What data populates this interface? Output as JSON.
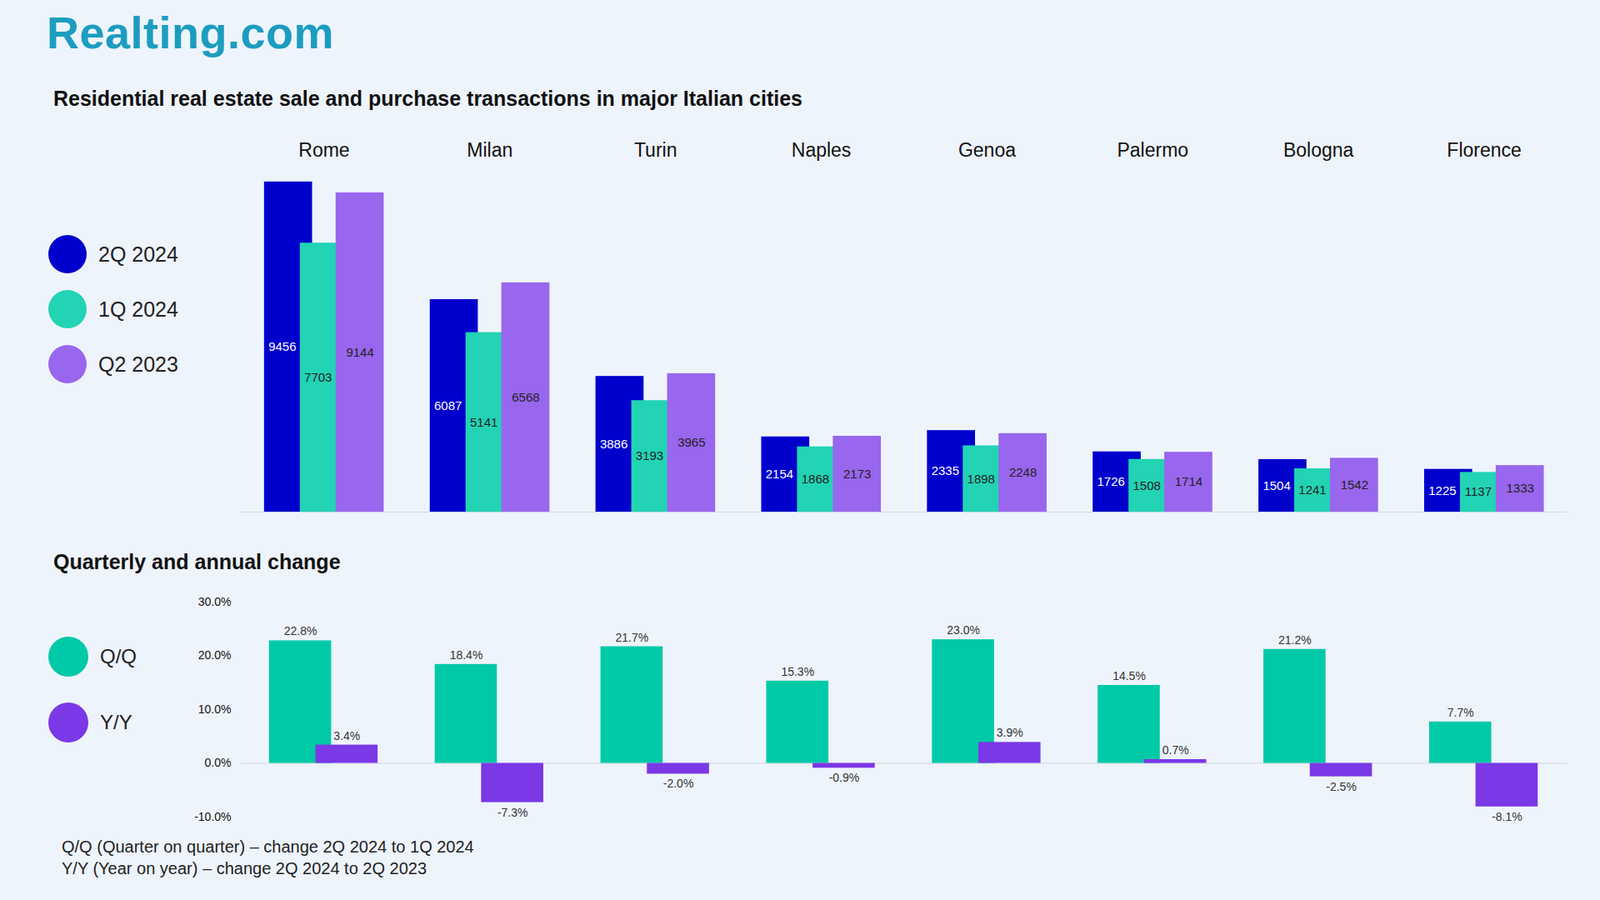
{
  "brand": "Realting.com",
  "chart_data": [
    {
      "type": "bar",
      "title": "Residential real estate sale and purchase transactions in major Italian cities",
      "categories": [
        "Rome",
        "Milan",
        "Turin",
        "Naples",
        "Genoa",
        "Palermo",
        "Bologna",
        "Florence"
      ],
      "series": [
        {
          "name": "2Q 2024",
          "color": "#0000cc",
          "values": [
            9456,
            6087,
            3886,
            2154,
            2335,
            1726,
            1504,
            1225
          ]
        },
        {
          "name": "1Q 2024",
          "color": "#22d3b4",
          "values": [
            7703,
            5141,
            3193,
            1868,
            1898,
            1508,
            1241,
            1137
          ]
        },
        {
          "name": "Q2 2023",
          "color": "#9966ee",
          "values": [
            9144,
            6568,
            3965,
            2173,
            2248,
            1714,
            1542,
            1333
          ]
        }
      ],
      "ylim": [
        0,
        10000
      ],
      "yticks": [],
      "grid": false,
      "legend": "left",
      "data_labels": true,
      "tick_labels": "x"
    },
    {
      "type": "bar",
      "title": "Quarterly and annual change",
      "categories": [
        null,
        null,
        null,
        null,
        null,
        null,
        null,
        null
      ],
      "series": [
        {
          "name": "Q/Q",
          "color": "#00c9a7",
          "values": [
            22.8,
            18.4,
            21.7,
            15.3,
            23.0,
            14.5,
            21.2,
            7.7
          ],
          "value_labels": [
            "22.8%",
            "18.4%",
            "21.7%",
            "15.3%",
            "23.0%",
            "14.5%",
            "21.2%",
            "7.7%"
          ]
        },
        {
          "name": "Y/Y",
          "color": "#7b38e6",
          "values": [
            3.4,
            -7.3,
            -2.0,
            -0.9,
            3.9,
            0.7,
            -2.5,
            -8.1
          ],
          "value_labels": [
            "3.4%",
            "-7.3%",
            "-2.0%",
            "-0.9%",
            "3.9%",
            "0.7%",
            "-2.5%",
            "-8.1%"
          ]
        }
      ],
      "ylim": [
        -10,
        30
      ],
      "yticks": [
        {
          "value": -10,
          "label": "-10.0%"
        },
        {
          "value": 0,
          "label": "0.0%"
        },
        {
          "value": 10,
          "label": "10.0%"
        },
        {
          "value": 20,
          "label": "20.0%"
        },
        {
          "value": 30,
          "label": "30.0%"
        }
      ],
      "grid": false,
      "legend": "left",
      "data_labels": true,
      "tick_labels": "y",
      "annotations": [
        "Q/Q (Quarter on quarter) – change 2Q 2024 to 1Q 2024",
        "Y/Y (Year on year) – change 2Q 2024 to 2Q 2023"
      ]
    }
  ]
}
